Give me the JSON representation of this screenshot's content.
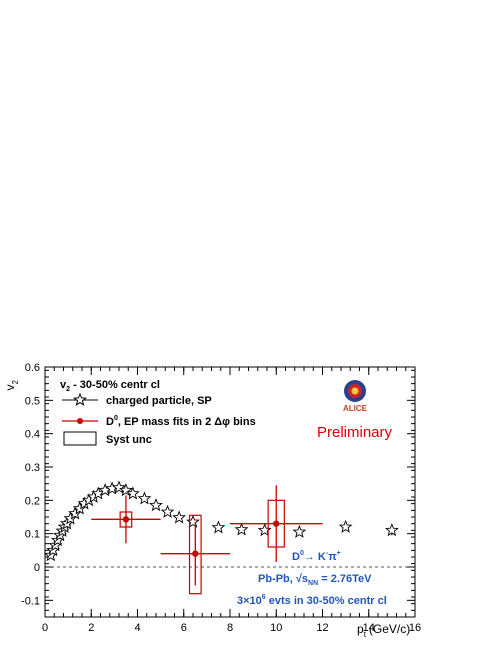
{
  "chart_data": {
    "type": "scatter",
    "xlim": [
      0,
      16
    ],
    "ylim": [
      -0.15,
      0.6
    ],
    "xticks": [
      0,
      2,
      4,
      6,
      8,
      10,
      12,
      14,
      16
    ],
    "xtick_labels": [
      "0",
      "2",
      "4",
      "6",
      "8",
      "10",
      "12",
      "14",
      "16"
    ],
    "yticks": [
      -0.1,
      0,
      0.1,
      0.2,
      0.3,
      0.4,
      0.5,
      0.6
    ],
    "ytick_labels": [
      "-0.1",
      "0",
      "0.1",
      "0.2",
      "0.3",
      "0.4",
      "0.5",
      "0.6"
    ],
    "xlabel_main": "p",
    "xlabel_sub": "t",
    "xlabel_unit": "(GeV/c)",
    "ylabel_main": "v",
    "ylabel_sub": "2",
    "title": "v2 - 30-50% centr cl",
    "title_main": "v",
    "title_sub": "2",
    "title_rest": " - 30-50% centr cl",
    "grid": false,
    "zero_line": {
      "y": 0,
      "style": "dashed"
    },
    "legend_position": "top-left",
    "legend": {
      "charged": "charged particle, SP",
      "d0_main": "D",
      "d0_sup": "0",
      "d0_rest": ", EP mass fits in 2 Δφ bins",
      "syst": "Syst unc"
    },
    "annotations": {
      "preliminary": "Preliminary",
      "logo": "ALICE",
      "decay_d": "D",
      "decay_d_sup": "0",
      "decay_arrow": "→ K",
      "decay_k_sup": "-",
      "decay_pi": "π",
      "decay_pi_sup": "+",
      "system_a": "Pb-Pb, ",
      "system_sqrt": "√s",
      "system_sub": "NN",
      "system_b": " = 2.76TeV",
      "events_a": "3×10",
      "events_sup": "6",
      "events_b": " evts in 30-50% centr cl"
    },
    "colors": {
      "charged": "#000000",
      "d0": "#cc0000",
      "annotation": "#2255bb",
      "preliminary": "#dd0000"
    },
    "series": [
      {
        "name": "charged particle, SP",
        "marker": "open-star",
        "x": [
          0.25,
          0.35,
          0.45,
          0.55,
          0.65,
          0.75,
          0.85,
          0.95,
          1.1,
          1.3,
          1.5,
          1.7,
          1.9,
          2.1,
          2.3,
          2.6,
          2.9,
          3.2,
          3.5,
          3.8,
          4.3,
          4.8,
          5.3,
          5.8,
          6.4,
          7.5,
          8.5,
          9.5,
          11,
          13,
          15
        ],
        "y": [
          0.035,
          0.05,
          0.065,
          0.08,
          0.095,
          0.108,
          0.12,
          0.13,
          0.145,
          0.16,
          0.175,
          0.19,
          0.2,
          0.21,
          0.22,
          0.23,
          0.235,
          0.238,
          0.23,
          0.22,
          0.205,
          0.185,
          0.165,
          0.148,
          0.135,
          0.118,
          0.112,
          0.11,
          0.105,
          0.12,
          0.11
        ],
        "yerr": [
          0,
          0,
          0,
          0,
          0,
          0,
          0,
          0,
          0,
          0,
          0,
          0,
          0,
          0,
          0,
          0,
          0,
          0,
          0,
          0,
          0,
          0,
          0,
          0,
          0,
          0,
          0,
          0,
          0,
          0.01,
          0.015
        ]
      },
      {
        "name": "D0, EP mass fits in 2 Δφ bins",
        "marker": "filled-circle",
        "x": [
          3.5,
          6.5,
          10
        ],
        "y": [
          0.143,
          0.04,
          0.13
        ],
        "xerr_low": [
          1.5,
          1.5,
          2
        ],
        "xerr_high": [
          1.5,
          1.5,
          2
        ],
        "yerr": [
          0.072,
          0.095,
          0.115
        ],
        "syst_low": [
          0.12,
          -0.08,
          0.06
        ],
        "syst_high": [
          0.165,
          0.155,
          0.2
        ],
        "syst_halfwidth": [
          0.25,
          0.25,
          0.35
        ]
      }
    ]
  }
}
